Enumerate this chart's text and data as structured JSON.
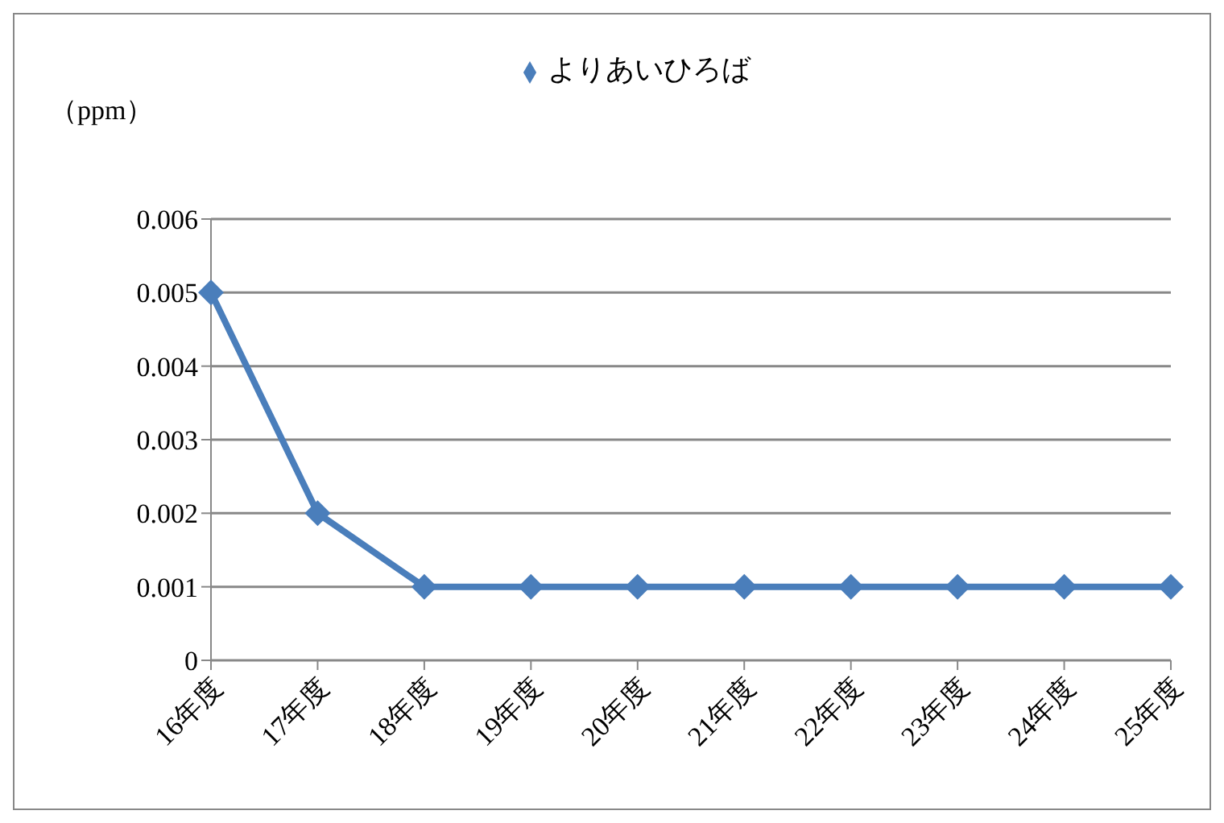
{
  "chart_data": {
    "type": "line",
    "ylabel": "（ppm）",
    "categories": [
      "16年度",
      "17年度",
      "18年度",
      "19年度",
      "20年度",
      "21年度",
      "22年度",
      "23年度",
      "24年度",
      "25年度"
    ],
    "series": [
      {
        "name": "よりあいひろば",
        "color": "#4a7ebb",
        "values": [
          0.005,
          0.002,
          0.001,
          0.001,
          0.001,
          0.001,
          0.001,
          0.001,
          0.001,
          0.001
        ]
      }
    ],
    "ylim": [
      0,
      0.006
    ],
    "yticks": [
      0,
      0.001,
      0.002,
      0.003,
      0.004,
      0.005,
      0.006
    ],
    "grid": "y",
    "legend": "top",
    "marker": "diamond",
    "line_style": "solid"
  }
}
